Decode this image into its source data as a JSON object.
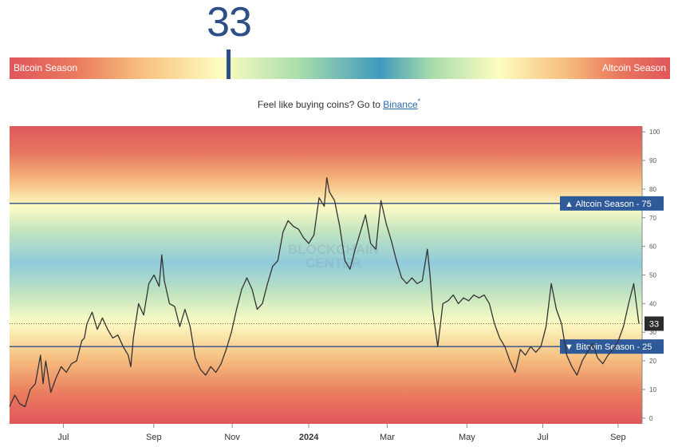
{
  "index": {
    "value": "33"
  },
  "season_bar": {
    "left_label": "Bitcoin Season",
    "right_label": "Altcoin Season"
  },
  "promo": {
    "text": "Feel like buying coins? Go to ",
    "link": "Binance",
    "star": "*"
  },
  "watermark": {
    "line1": "BLOCKCHAIN",
    "line2": "CENTER"
  },
  "chart_data": {
    "type": "line",
    "ylim": [
      -2,
      102
    ],
    "y_ticks": [
      0,
      10,
      20,
      30,
      40,
      50,
      60,
      70,
      80,
      90,
      100
    ],
    "x_ticks": [
      {
        "label": "Jul",
        "pos": 0.085,
        "bold": false
      },
      {
        "label": "Sep",
        "pos": 0.228,
        "bold": false
      },
      {
        "label": "Nov",
        "pos": 0.352,
        "bold": false
      },
      {
        "label": "2024",
        "pos": 0.473,
        "bold": true
      },
      {
        "label": "Mar",
        "pos": 0.597,
        "bold": false
      },
      {
        "label": "May",
        "pos": 0.723,
        "bold": false
      },
      {
        "label": "Jul",
        "pos": 0.843,
        "bold": false
      },
      {
        "label": "Sep",
        "pos": 0.962,
        "bold": false
      }
    ],
    "reference_lines": [
      {
        "label": "▲ Altcoin Season - 75",
        "value": 75
      },
      {
        "label": "▼ Bitcoin Season - 25",
        "value": 25
      }
    ],
    "current": {
      "label": "33",
      "value": 33
    },
    "series": [
      {
        "color": "#333333",
        "points": [
          [
            0.0,
            4
          ],
          [
            0.01,
            8
          ],
          [
            0.02,
            5
          ],
          [
            0.03,
            4
          ],
          [
            0.04,
            10
          ],
          [
            0.05,
            12
          ],
          [
            0.06,
            22
          ],
          [
            0.065,
            12
          ],
          [
            0.07,
            20
          ],
          [
            0.08,
            9
          ],
          [
            0.09,
            14
          ],
          [
            0.1,
            18
          ],
          [
            0.11,
            16
          ],
          [
            0.12,
            19
          ],
          [
            0.13,
            20
          ],
          [
            0.14,
            27
          ],
          [
            0.145,
            28
          ],
          [
            0.15,
            33
          ],
          [
            0.16,
            37
          ],
          [
            0.17,
            31
          ],
          [
            0.18,
            35
          ],
          [
            0.19,
            31
          ],
          [
            0.2,
            28
          ],
          [
            0.21,
            29
          ],
          [
            0.22,
            25
          ],
          [
            0.23,
            22
          ],
          [
            0.235,
            18
          ],
          [
            0.24,
            28
          ],
          [
            0.25,
            40
          ],
          [
            0.26,
            36
          ],
          [
            0.27,
            47
          ],
          [
            0.28,
            50
          ],
          [
            0.29,
            46
          ],
          [
            0.295,
            57
          ],
          [
            0.3,
            48
          ],
          [
            0.31,
            40
          ],
          [
            0.32,
            39
          ],
          [
            0.33,
            32
          ],
          [
            0.34,
            38
          ],
          [
            0.35,
            32
          ],
          [
            0.36,
            21
          ],
          [
            0.37,
            17
          ],
          [
            0.38,
            15
          ],
          [
            0.39,
            18
          ],
          [
            0.4,
            16
          ],
          [
            0.41,
            19
          ],
          [
            0.42,
            24
          ],
          [
            0.43,
            30
          ],
          [
            0.44,
            38
          ],
          [
            0.45,
            45
          ],
          [
            0.46,
            49
          ],
          [
            0.47,
            45
          ],
          [
            0.48,
            38
          ],
          [
            0.49,
            40
          ],
          [
            0.5,
            47
          ],
          [
            0.51,
            53
          ],
          [
            0.52,
            55
          ],
          [
            0.53,
            65
          ],
          [
            0.54,
            69
          ],
          [
            0.55,
            67
          ],
          [
            0.56,
            66
          ],
          [
            0.57,
            63
          ],
          [
            0.58,
            61
          ],
          [
            0.59,
            64
          ],
          [
            0.6,
            77
          ],
          [
            0.61,
            74
          ],
          [
            0.615,
            84
          ],
          [
            0.62,
            79
          ],
          [
            0.63,
            76
          ],
          [
            0.64,
            67
          ],
          [
            0.65,
            55
          ],
          [
            0.66,
            52
          ],
          [
            0.67,
            59
          ],
          [
            0.68,
            65
          ],
          [
            0.69,
            71
          ],
          [
            0.7,
            61
          ],
          [
            0.71,
            59
          ],
          [
            0.72,
            76
          ],
          [
            0.73,
            68
          ],
          [
            0.74,
            62
          ],
          [
            0.75,
            55
          ],
          [
            0.76,
            49
          ],
          [
            0.77,
            47
          ],
          [
            0.78,
            49
          ],
          [
            0.79,
            47
          ],
          [
            0.8,
            48
          ],
          [
            0.81,
            59
          ],
          [
            0.815,
            50
          ],
          [
            0.82,
            38
          ],
          [
            0.83,
            25
          ],
          [
            0.84,
            40
          ],
          [
            0.85,
            41
          ],
          [
            0.86,
            43
          ],
          [
            0.87,
            40
          ],
          [
            0.88,
            42
          ],
          [
            0.89,
            41
          ],
          [
            0.9,
            43
          ],
          [
            0.91,
            42
          ],
          [
            0.92,
            43
          ],
          [
            0.93,
            40
          ],
          [
            0.94,
            33
          ],
          [
            0.95,
            28
          ],
          [
            0.96,
            25
          ],
          [
            0.97,
            20
          ],
          [
            0.98,
            16
          ],
          [
            0.99,
            24
          ],
          [
            1.0,
            22
          ],
          [
            1.01,
            25
          ],
          [
            1.02,
            23
          ],
          [
            1.03,
            25
          ],
          [
            1.04,
            32
          ],
          [
            1.05,
            47
          ],
          [
            1.06,
            38
          ],
          [
            1.07,
            33
          ],
          [
            1.08,
            22
          ],
          [
            1.09,
            18
          ],
          [
            1.1,
            15
          ],
          [
            1.11,
            20
          ],
          [
            1.12,
            23
          ],
          [
            1.13,
            26
          ],
          [
            1.14,
            21
          ],
          [
            1.15,
            19
          ],
          [
            1.16,
            22
          ],
          [
            1.17,
            24
          ],
          [
            1.18,
            27
          ],
          [
            1.19,
            32
          ],
          [
            1.2,
            40
          ],
          [
            1.21,
            47
          ],
          [
            1.22,
            33
          ]
        ]
      }
    ]
  }
}
